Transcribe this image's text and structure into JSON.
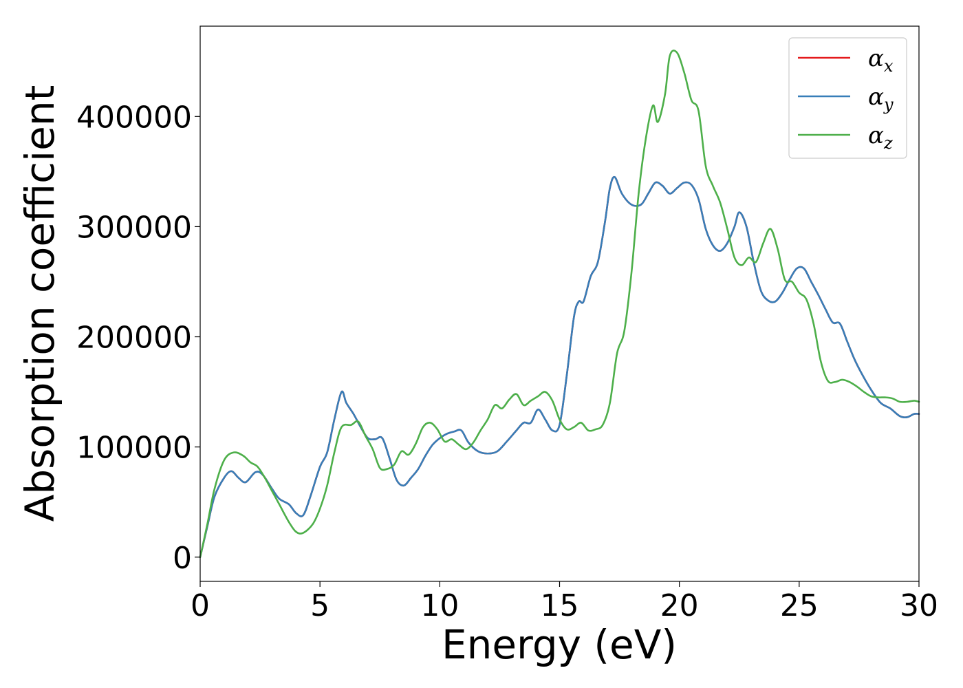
{
  "chart_data": {
    "type": "line",
    "title": "",
    "xlabel": "Energy (eV)",
    "ylabel": "Absorption coefficient",
    "xlim": [
      0,
      30
    ],
    "ylim": [
      -22000,
      482000
    ],
    "xticks": [
      0,
      5,
      10,
      15,
      20,
      25,
      30
    ],
    "yticks": [
      0,
      100000,
      200000,
      300000,
      400000
    ],
    "grid": false,
    "legend_position": "top-right",
    "series": [
      {
        "name": "α",
        "subscript": "x",
        "color": "#e41a1c",
        "x": [
          0,
          0.3,
          0.6,
          1.0,
          1.3,
          1.6,
          1.9,
          2.3,
          2.6,
          3.0,
          3.3,
          3.7,
          4.0,
          4.3,
          4.6,
          5.0,
          5.3,
          5.6,
          5.9,
          6.1,
          6.4,
          6.7,
          7.0,
          7.3,
          7.6,
          7.9,
          8.2,
          8.5,
          8.8,
          9.1,
          9.4,
          9.7,
          10.0,
          10.3,
          10.6,
          10.9,
          11.2,
          11.6,
          12.0,
          12.4,
          12.8,
          13.2,
          13.5,
          13.8,
          14.1,
          14.4,
          14.7,
          15.0,
          15.3,
          15.6,
          15.8,
          16.0,
          16.3,
          16.6,
          16.9,
          17.1,
          17.3,
          17.6,
          18.0,
          18.4,
          18.7,
          19.0,
          19.3,
          19.6,
          19.9,
          20.2,
          20.5,
          20.8,
          21.1,
          21.4,
          21.7,
          22.0,
          22.3,
          22.5,
          22.8,
          23.1,
          23.4,
          23.7,
          24.0,
          24.3,
          24.6,
          24.9,
          25.2,
          25.5,
          25.8,
          26.1,
          26.4,
          26.7,
          27.0,
          27.3,
          27.6,
          28.0,
          28.4,
          28.8,
          29.2,
          29.5,
          29.8,
          30.0
        ],
        "y": [
          0,
          28000,
          55000,
          72000,
          78000,
          72000,
          68000,
          77000,
          75000,
          62000,
          53000,
          48000,
          40000,
          38000,
          55000,
          82000,
          95000,
          125000,
          150000,
          140000,
          130000,
          118000,
          108000,
          107000,
          108000,
          90000,
          70000,
          65000,
          72000,
          80000,
          92000,
          102000,
          108000,
          112000,
          114000,
          115000,
          104000,
          96000,
          94000,
          96000,
          105000,
          115000,
          122000,
          122000,
          134000,
          125000,
          115000,
          120000,
          165000,
          218000,
          232000,
          232000,
          255000,
          268000,
          305000,
          335000,
          345000,
          330000,
          320000,
          320000,
          330000,
          340000,
          337000,
          330000,
          335000,
          340000,
          338000,
          325000,
          298000,
          283000,
          278000,
          285000,
          300000,
          313000,
          300000,
          268000,
          242000,
          233000,
          232000,
          240000,
          252000,
          262000,
          262000,
          250000,
          238000,
          225000,
          213000,
          212000,
          196000,
          180000,
          167000,
          152000,
          140000,
          135000,
          128000,
          127000,
          130000,
          130000
        ]
      },
      {
        "name": "α",
        "subscript": "y",
        "color": "#377eb8",
        "x": [
          0,
          0.3,
          0.6,
          1.0,
          1.3,
          1.6,
          1.9,
          2.3,
          2.6,
          3.0,
          3.3,
          3.7,
          4.0,
          4.3,
          4.6,
          5.0,
          5.3,
          5.6,
          5.9,
          6.1,
          6.4,
          6.7,
          7.0,
          7.3,
          7.6,
          7.9,
          8.2,
          8.5,
          8.8,
          9.1,
          9.4,
          9.7,
          10.0,
          10.3,
          10.6,
          10.9,
          11.2,
          11.6,
          12.0,
          12.4,
          12.8,
          13.2,
          13.5,
          13.8,
          14.1,
          14.4,
          14.7,
          15.0,
          15.3,
          15.6,
          15.8,
          16.0,
          16.3,
          16.6,
          16.9,
          17.1,
          17.3,
          17.6,
          18.0,
          18.4,
          18.7,
          19.0,
          19.3,
          19.6,
          19.9,
          20.2,
          20.5,
          20.8,
          21.1,
          21.4,
          21.7,
          22.0,
          22.3,
          22.5,
          22.8,
          23.1,
          23.4,
          23.7,
          24.0,
          24.3,
          24.6,
          24.9,
          25.2,
          25.5,
          25.8,
          26.1,
          26.4,
          26.7,
          27.0,
          27.3,
          27.6,
          28.0,
          28.4,
          28.8,
          29.2,
          29.5,
          29.8,
          30.0
        ],
        "y": [
          0,
          28000,
          55000,
          72000,
          78000,
          72000,
          68000,
          77000,
          75000,
          62000,
          53000,
          48000,
          40000,
          38000,
          55000,
          82000,
          95000,
          125000,
          150000,
          140000,
          130000,
          118000,
          108000,
          107000,
          108000,
          90000,
          70000,
          65000,
          72000,
          80000,
          92000,
          102000,
          108000,
          112000,
          114000,
          115000,
          104000,
          96000,
          94000,
          96000,
          105000,
          115000,
          122000,
          122000,
          134000,
          125000,
          115000,
          120000,
          165000,
          218000,
          232000,
          232000,
          255000,
          268000,
          305000,
          335000,
          345000,
          330000,
          320000,
          320000,
          330000,
          340000,
          337000,
          330000,
          335000,
          340000,
          338000,
          325000,
          298000,
          283000,
          278000,
          285000,
          300000,
          313000,
          300000,
          268000,
          242000,
          233000,
          232000,
          240000,
          252000,
          262000,
          262000,
          250000,
          238000,
          225000,
          213000,
          212000,
          196000,
          180000,
          167000,
          152000,
          140000,
          135000,
          128000,
          127000,
          130000,
          130000
        ]
      },
      {
        "name": "α",
        "subscript": "z",
        "color": "#4daf4a",
        "x": [
          0,
          0.3,
          0.6,
          1.0,
          1.4,
          1.8,
          2.1,
          2.4,
          2.7,
          3.0,
          3.3,
          3.7,
          4.0,
          4.3,
          4.7,
          5.0,
          5.3,
          5.6,
          5.9,
          6.3,
          6.6,
          6.9,
          7.2,
          7.5,
          7.8,
          8.1,
          8.4,
          8.7,
          9.0,
          9.3,
          9.6,
          9.9,
          10.2,
          10.5,
          10.8,
          11.1,
          11.4,
          11.7,
          12.0,
          12.3,
          12.6,
          12.9,
          13.2,
          13.5,
          13.8,
          14.1,
          14.4,
          14.7,
          15.0,
          15.3,
          15.6,
          15.9,
          16.2,
          16.5,
          16.8,
          17.1,
          17.4,
          17.7,
          18.0,
          18.3,
          18.6,
          18.9,
          19.1,
          19.4,
          19.6,
          19.9,
          20.2,
          20.5,
          20.8,
          21.1,
          21.4,
          21.7,
          22.0,
          22.3,
          22.6,
          22.9,
          23.2,
          23.5,
          23.8,
          24.1,
          24.4,
          24.7,
          25.0,
          25.3,
          25.6,
          25.9,
          26.2,
          26.5,
          26.8,
          27.1,
          27.4,
          27.7,
          28.0,
          28.3,
          28.6,
          28.9,
          29.2,
          29.5,
          29.8,
          30.0
        ],
        "y": [
          0,
          30000,
          62000,
          88000,
          95000,
          92000,
          86000,
          82000,
          72000,
          60000,
          48000,
          32000,
          23000,
          22000,
          30000,
          44000,
          65000,
          95000,
          118000,
          120000,
          123000,
          110000,
          98000,
          81000,
          80000,
          84000,
          96000,
          93000,
          103000,
          118000,
          122000,
          116000,
          105000,
          107000,
          102000,
          98000,
          104000,
          115000,
          125000,
          138000,
          135000,
          143000,
          148000,
          138000,
          142000,
          146000,
          150000,
          142000,
          125000,
          116000,
          118000,
          122000,
          115000,
          116000,
          120000,
          140000,
          185000,
          205000,
          258000,
          330000,
          380000,
          410000,
          395000,
          420000,
          455000,
          458000,
          440000,
          415000,
          405000,
          355000,
          337000,
          322000,
          298000,
          272000,
          265000,
          272000,
          268000,
          285000,
          298000,
          280000,
          252000,
          250000,
          240000,
          234000,
          212000,
          178000,
          160000,
          159000,
          161000,
          159000,
          155000,
          150000,
          146000,
          145000,
          145000,
          144000,
          141000,
          141000,
          142000,
          141000
        ]
      }
    ]
  }
}
